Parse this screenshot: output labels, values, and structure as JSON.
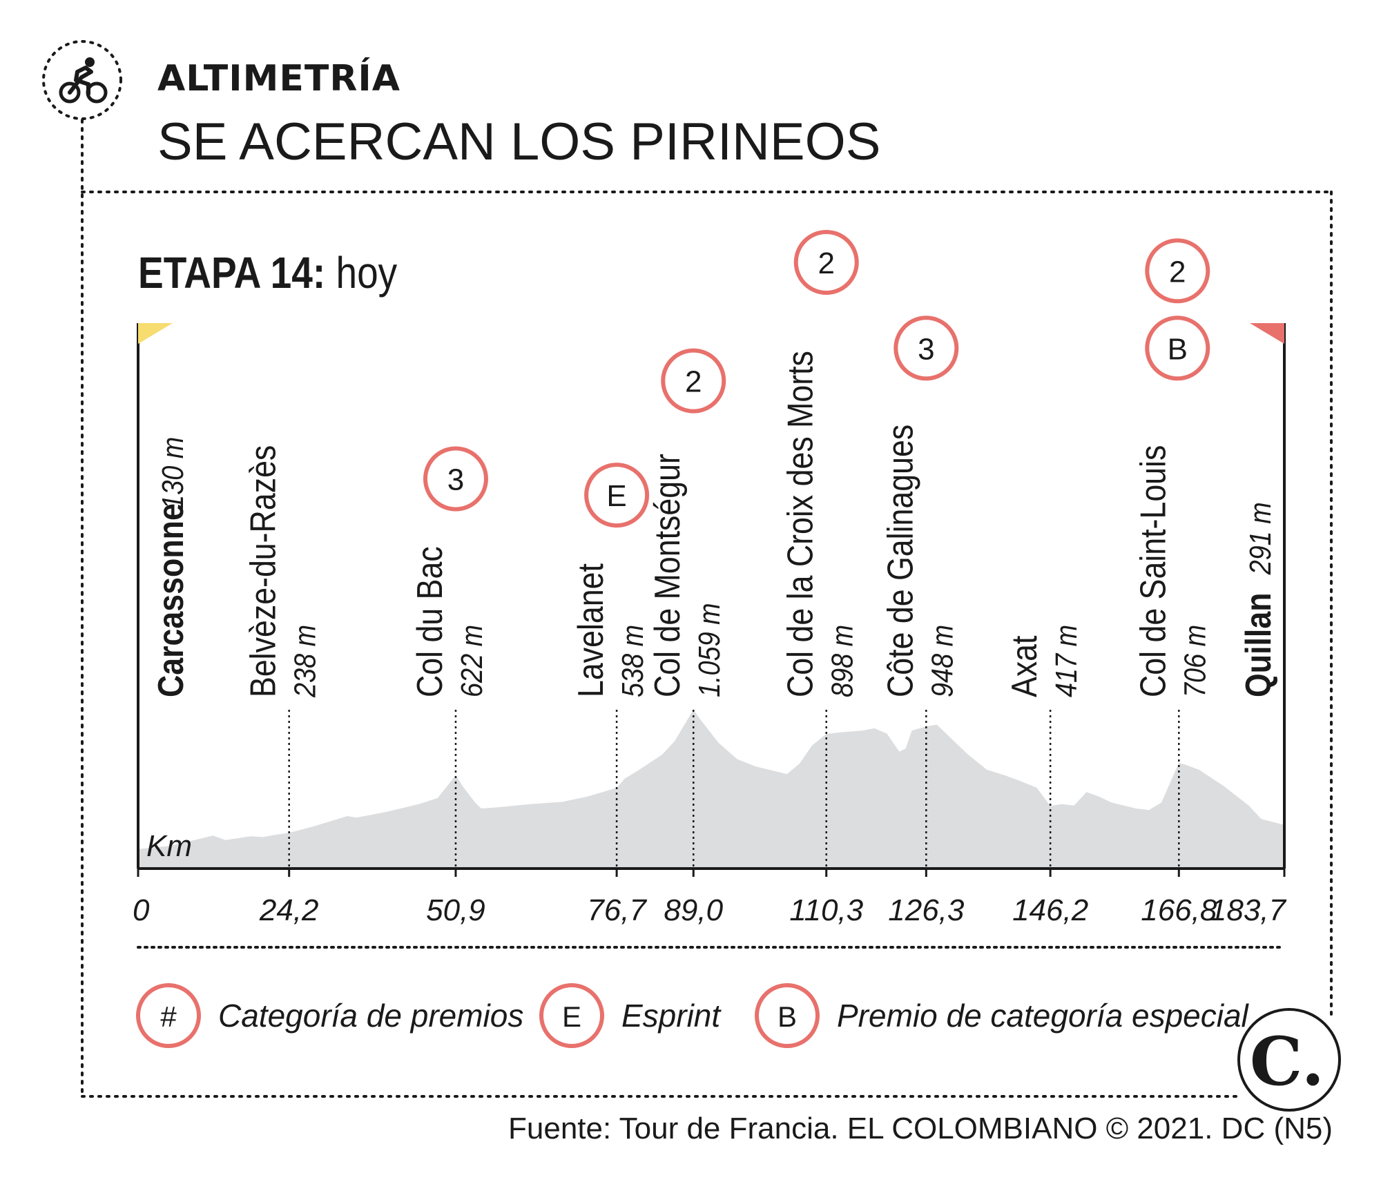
{
  "header": {
    "kicker": "ALTIMETRÍA",
    "title": "SE ACERCAN LOS PIRINEOS",
    "icon": "cyclist-icon"
  },
  "stage": {
    "label_bold": "ETAPA 14:",
    "label_rest": "hoy"
  },
  "source": "Fuente: Tour de Francia. EL COLOMBIANO © 2021. DC (N5)",
  "logo": {
    "icon": "el-colombiano-logo-icon",
    "letter": "C."
  },
  "colors": {
    "accent": "#e8716c",
    "profile": "#dcdddf",
    "start_flag": "#f7dc6f",
    "finish_flag": "#e8716c",
    "text": "#1a1a1a"
  },
  "legend": [
    {
      "symbol": "#",
      "label": "Categoría de premios"
    },
    {
      "symbol": "E",
      "label": "Esprint"
    },
    {
      "symbol": "B",
      "label": "Premio de categoría especial"
    }
  ],
  "chart_data": {
    "type": "area",
    "title": "ETAPA 14: hoy",
    "xlabel": "Km",
    "ylabel": "",
    "xlim": [
      0,
      183.7
    ],
    "ylim": [
      0,
      1150
    ],
    "x_ticks": [
      "0",
      "24,2",
      "50,9",
      "76,7",
      "89,0",
      "110,3",
      "126,3",
      "146,2",
      "166,8",
      "183,7"
    ],
    "x_tick_values": [
      0,
      24.2,
      50.9,
      76.7,
      89.0,
      110.3,
      126.3,
      146.2,
      166.8,
      183.7
    ],
    "waypoints": [
      {
        "name": "Carcassonne",
        "alt": "130 m",
        "km": 0,
        "bold": true
      },
      {
        "name": "Belvèze-du-Razès",
        "alt": "238 m",
        "km": 24.2
      },
      {
        "name": "Col du Bac",
        "alt": "622 m",
        "km": 50.9,
        "badges": [
          "3"
        ]
      },
      {
        "name": "Lavelanet",
        "alt": "538 m",
        "km": 76.7,
        "badges": [
          "E"
        ]
      },
      {
        "name": "Col de Montségur",
        "alt": "1.059 m",
        "km": 89.0,
        "badges": [
          "2"
        ]
      },
      {
        "name": "Col de la Croix des Morts",
        "alt": "898 m",
        "km": 110.3,
        "badges": [
          "2"
        ]
      },
      {
        "name": "Côte de Galinagues",
        "alt": "948 m",
        "km": 126.3,
        "badges": [
          "3"
        ]
      },
      {
        "name": "Axat",
        "alt": "417 m",
        "km": 146.2
      },
      {
        "name": "Col de Saint-Louis",
        "alt": "706 m",
        "km": 166.8,
        "badges": [
          "2",
          "B"
        ]
      },
      {
        "name": "Quillan",
        "alt": "291 m",
        "km": 183.7,
        "bold": true
      }
    ],
    "profile": {
      "x": [
        0,
        5,
        10,
        12,
        14,
        18,
        20,
        22,
        24.2,
        28,
        32,
        33.5,
        35,
        40,
        45,
        48,
        50.9,
        52,
        54,
        55,
        58,
        63,
        68,
        72,
        76.7,
        78,
        80,
        84,
        86,
        89.0,
        90,
        93,
        96,
        99,
        102,
        104,
        106,
        108,
        110.3,
        113,
        116,
        118,
        120,
        122,
        123,
        124,
        126.3,
        128,
        130,
        133,
        136,
        139,
        141,
        144,
        146.2,
        148,
        150,
        152,
        154,
        156,
        158,
        160,
        162,
        164,
        166.8,
        168,
        170,
        174,
        178,
        180,
        183.7
      ],
      "y": [
        130,
        150,
        200,
        220,
        190,
        215,
        210,
        225,
        238,
        280,
        330,
        350,
        340,
        380,
        430,
        470,
        622,
        550,
        440,
        400,
        410,
        430,
        445,
        480,
        538,
        600,
        650,
        760,
        850,
        1059,
        1000,
        840,
        730,
        680,
        650,
        630,
        700,
        820,
        898,
        910,
        920,
        935,
        900,
        780,
        800,
        920,
        948,
        960,
        880,
        760,
        660,
        620,
        590,
        540,
        417,
        430,
        420,
        510,
        480,
        440,
        420,
        400,
        390,
        440,
        706,
        690,
        660,
        550,
        420,
        330,
        291
      ]
    }
  }
}
